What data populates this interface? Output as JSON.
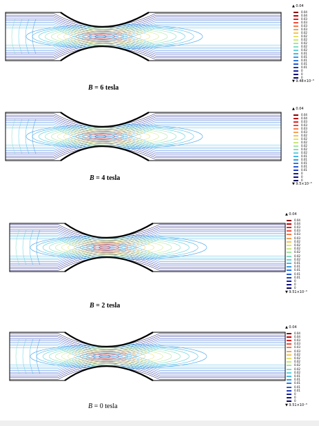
{
  "panels": [
    {
      "caption": "B = 6 tesla",
      "caption_bold": true,
      "legend": {
        "max": "▲ 0.04",
        "min": "▼ 9.48×10⁻³",
        "ticks": [
          "0.04",
          "0.04",
          "0.03",
          "0.03",
          "0.03",
          "0.03",
          "0.02",
          "0.02",
          "0.02",
          "0.02",
          "0.02",
          "0.02",
          "0.01",
          "0.01",
          "0.01",
          "0.01",
          "0.01",
          "0",
          "0",
          "0"
        ]
      }
    },
    {
      "caption": "B = 4 tesla",
      "caption_bold": true,
      "legend": {
        "max": "▲ 0.04",
        "min": "▼ 9.5×10⁻³",
        "ticks": [
          "0.04",
          "0.04",
          "0.03",
          "0.03",
          "0.03",
          "0.03",
          "0.02",
          "0.02",
          "0.02",
          "0.02",
          "0.02",
          "0.02",
          "0.01",
          "0.01",
          "0.01",
          "0.01",
          "0.01",
          "0",
          "0",
          "0"
        ]
      }
    },
    {
      "caption": "B = 2 tesla",
      "caption_bold": true,
      "legend": {
        "max": "▲ 0.04",
        "min": "▼ 9.51×10⁻³",
        "ticks": [
          "0.04",
          "0.04",
          "0.03",
          "0.03",
          "0.03",
          "0.03",
          "0.02",
          "0.02",
          "0.02",
          "0.02",
          "0.02",
          "0.02",
          "0.01",
          "0.01",
          "0.01",
          "0.01",
          "0.01",
          "0",
          "0",
          "0"
        ]
      }
    },
    {
      "caption": "B = 0 tesla",
      "caption_bold": false,
      "legend": {
        "max": "▲ 0.04",
        "min": "▼ 9.51×10⁻³",
        "ticks": [
          "0.04",
          "0.04",
          "0.03",
          "0.03",
          "0.03",
          "0.03",
          "0.02",
          "0.02",
          "0.02",
          "0.02",
          "0.02",
          "0.02",
          "0.01",
          "0.01",
          "0.01",
          "0.01",
          "0.01",
          "0",
          "0",
          "0"
        ]
      }
    }
  ],
  "colors": {
    "scale": [
      "#8b0000",
      "#c00000",
      "#e02020",
      "#f04a3a",
      "#f57a4a",
      "#f6a050",
      "#f2c45a",
      "#e6df68",
      "#c8e67a",
      "#a3e6a0",
      "#7fdcc0",
      "#5fd0dc",
      "#48b8e6",
      "#3a9ae6",
      "#2f78e0",
      "#2556d0",
      "#1c38b8",
      "#141e9a",
      "#0c0c7e",
      "#06065a"
    ],
    "wall": "#000000"
  }
}
